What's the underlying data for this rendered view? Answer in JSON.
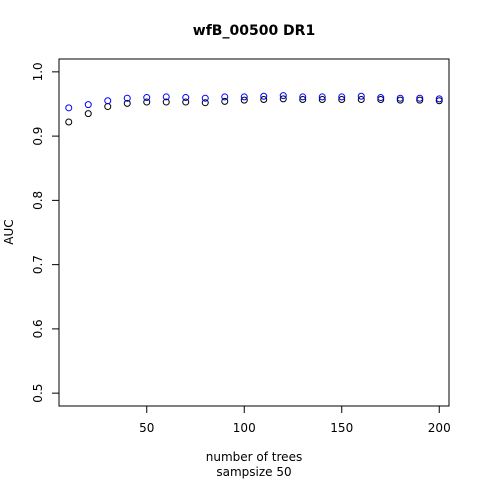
{
  "chart_data": {
    "type": "scatter",
    "title": "wfB_00500 DR1",
    "xlabel": "number of trees",
    "subxlabel": "sampsize 50",
    "ylabel": "AUC",
    "xlim": [
      5,
      205
    ],
    "ylim": [
      0.48,
      1.02
    ],
    "xticks": [
      50,
      100,
      150,
      200
    ],
    "yticks": [
      0.5,
      0.6,
      0.7,
      0.8,
      0.9,
      1.0
    ],
    "xtick_labels": [
      "50",
      "100",
      "150",
      "200"
    ],
    "ytick_labels": [
      "0.5",
      "0.6",
      "0.7",
      "0.8",
      "0.9",
      "1.0"
    ],
    "grid": false,
    "series": [
      {
        "color": "#000000",
        "x": [
          10,
          20,
          30,
          40,
          50,
          60,
          70,
          80,
          90,
          100,
          110,
          120,
          130,
          140,
          150,
          160,
          170,
          180,
          190,
          200
        ],
        "y": [
          0.922,
          0.935,
          0.946,
          0.951,
          0.953,
          0.953,
          0.953,
          0.952,
          0.954,
          0.956,
          0.957,
          0.958,
          0.957,
          0.957,
          0.957,
          0.957,
          0.957,
          0.956,
          0.956,
          0.955
        ]
      },
      {
        "color": "#0000ff",
        "x": [
          10,
          20,
          30,
          40,
          50,
          60,
          70,
          80,
          90,
          100,
          110,
          120,
          130,
          140,
          150,
          160,
          170,
          180,
          190,
          200
        ],
        "y": [
          0.944,
          0.949,
          0.955,
          0.959,
          0.96,
          0.961,
          0.96,
          0.959,
          0.961,
          0.961,
          0.962,
          0.963,
          0.961,
          0.961,
          0.961,
          0.962,
          0.96,
          0.959,
          0.959,
          0.958
        ]
      }
    ]
  }
}
